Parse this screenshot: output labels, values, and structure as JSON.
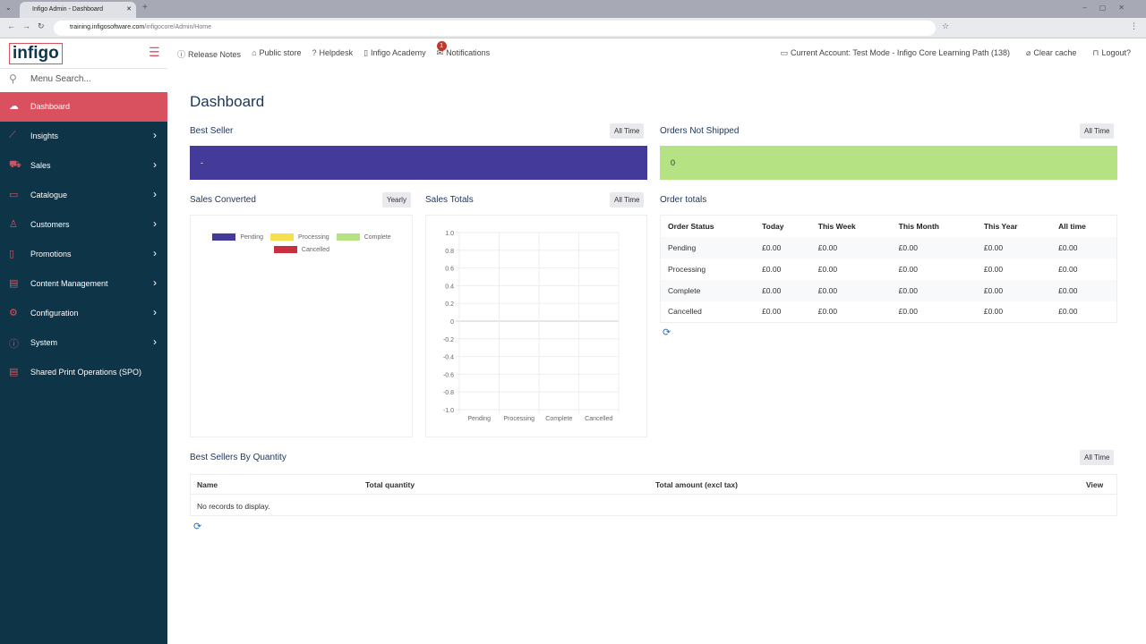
{
  "browser": {
    "tab_title": "Infigo Admin - Dashboard",
    "url_host": "training.infigosoftware.com",
    "url_path": "/infigocore/Admin/Home"
  },
  "sidebar": {
    "logo": "infigo",
    "search_placeholder": "Menu Search...",
    "items": [
      {
        "label": "Dashboard",
        "icon": "cloud-icon",
        "active": true
      },
      {
        "label": "Insights",
        "icon": "chart-line-icon"
      },
      {
        "label": "Sales",
        "icon": "cart-icon"
      },
      {
        "label": "Catalogue",
        "icon": "folder-icon"
      },
      {
        "label": "Customers",
        "icon": "user-icon"
      },
      {
        "label": "Promotions",
        "icon": "ticket-icon"
      },
      {
        "label": "Content Management",
        "icon": "layout-icon"
      },
      {
        "label": "Configuration",
        "icon": "gear-icon"
      },
      {
        "label": "System",
        "icon": "info-icon"
      },
      {
        "label": "Shared Print Operations (SPO)",
        "icon": "printer-icon"
      }
    ]
  },
  "topnav": {
    "release_notes": "Release Notes",
    "public_store": "Public store",
    "helpdesk": "Helpdesk",
    "academy": "Infigo Academy",
    "notifications": "Notifications",
    "notifications_count": "1",
    "account": "Current Account: Test Mode - Infigo Core Learning Path (138)",
    "clear_cache": "Clear cache",
    "logout": "Logout?"
  },
  "main": {
    "title": "Dashboard",
    "best_seller": {
      "title": "Best Seller",
      "filter": "All Time",
      "value": "-",
      "color": "#443a9a"
    },
    "orders_not_shipped": {
      "title": "Orders Not Shipped",
      "filter": "All Time",
      "value": "0",
      "color": "#b5e384"
    },
    "sales_converted": {
      "title": "Sales Converted",
      "filter": "Yearly"
    },
    "sales_totals": {
      "title": "Sales Totals",
      "filter": "All Time"
    },
    "order_totals": {
      "title": "Order totals",
      "columns": [
        "Order Status",
        "Today",
        "This Week",
        "This Month",
        "This Year",
        "All time"
      ],
      "rows": [
        [
          "Pending",
          "£0.00",
          "£0.00",
          "£0.00",
          "£0.00",
          "£0.00"
        ],
        [
          "Processing",
          "£0.00",
          "£0.00",
          "£0.00",
          "£0.00",
          "£0.00"
        ],
        [
          "Complete",
          "£0.00",
          "£0.00",
          "£0.00",
          "£0.00",
          "£0.00"
        ],
        [
          "Cancelled",
          "£0.00",
          "£0.00",
          "£0.00",
          "£0.00",
          "£0.00"
        ]
      ]
    },
    "best_sellers_qty": {
      "title": "Best Sellers By Quantity",
      "filter": "All Time",
      "columns": [
        "Name",
        "Total quantity",
        "Total amount (excl tax)",
        "View"
      ],
      "empty": "No records to display."
    }
  },
  "chart_data": [
    {
      "type": "pie",
      "legend": [
        {
          "name": "Pending",
          "color": "#443a9a"
        },
        {
          "name": "Processing",
          "color": "#f5e050"
        },
        {
          "name": "Complete",
          "color": "#b5e384"
        },
        {
          "name": "Cancelled",
          "color": "#c8303f"
        }
      ],
      "values": [],
      "legend_position": "top"
    },
    {
      "type": "bar",
      "categories": [
        "Pending",
        "Processing",
        "Complete",
        "Cancelled"
      ],
      "values": [
        0,
        0,
        0,
        0
      ],
      "ylim": [
        -1.0,
        1.0
      ],
      "yticks": [
        "1.0",
        "0.8",
        "0.6",
        "0.4",
        "0.2",
        "0",
        "-0.2",
        "-0.4",
        "-0.6",
        "-0.8",
        "-1.0"
      ],
      "grid": true
    }
  ]
}
